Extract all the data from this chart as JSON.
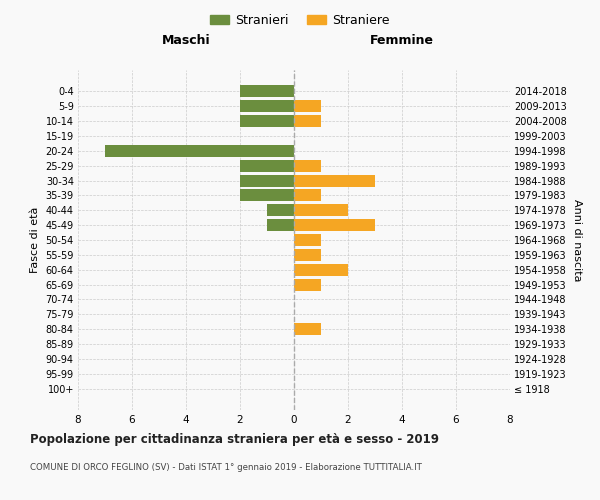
{
  "age_groups": [
    "100+",
    "95-99",
    "90-94",
    "85-89",
    "80-84",
    "75-79",
    "70-74",
    "65-69",
    "60-64",
    "55-59",
    "50-54",
    "45-49",
    "40-44",
    "35-39",
    "30-34",
    "25-29",
    "20-24",
    "15-19",
    "10-14",
    "5-9",
    "0-4"
  ],
  "birth_years": [
    "≤ 1918",
    "1919-1923",
    "1924-1928",
    "1929-1933",
    "1934-1938",
    "1939-1943",
    "1944-1948",
    "1949-1953",
    "1954-1958",
    "1959-1963",
    "1964-1968",
    "1969-1973",
    "1974-1978",
    "1979-1983",
    "1984-1988",
    "1989-1993",
    "1994-1998",
    "1999-2003",
    "2004-2008",
    "2009-2013",
    "2014-2018"
  ],
  "maschi": [
    0,
    0,
    0,
    0,
    0,
    0,
    0,
    0,
    0,
    0,
    0,
    1,
    1,
    2,
    2,
    2,
    7,
    0,
    2,
    2,
    2
  ],
  "femmine": [
    0,
    0,
    0,
    0,
    1,
    0,
    0,
    1,
    2,
    1,
    1,
    3,
    2,
    1,
    3,
    1,
    0,
    0,
    1,
    1,
    0
  ],
  "maschi_color": "#6b8e3e",
  "femmine_color": "#f5a623",
  "background_color": "#f9f9f9",
  "grid_color": "#cccccc",
  "title": "Popolazione per cittadinanza straniera per età e sesso - 2019",
  "subtitle": "COMUNE DI ORCO FEGLINO (SV) - Dati ISTAT 1° gennaio 2019 - Elaborazione TUTTITALIA.IT",
  "xlabel_left": "Maschi",
  "xlabel_right": "Femmine",
  "ylabel_left": "Fasce di età",
  "ylabel_right": "Anni di nascita",
  "legend_maschi": "Stranieri",
  "legend_femmine": "Straniere",
  "xlim": 8,
  "bar_height": 0.8
}
